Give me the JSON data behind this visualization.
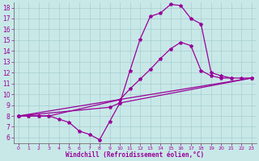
{
  "background_color": "#c8e8e8",
  "line_color": "#990099",
  "marker": "*",
  "markersize": 3,
  "linewidth": 0.9,
  "xlabel": "Windchill (Refroidissement éolien,°C)",
  "ylabel_ticks": [
    6,
    7,
    8,
    9,
    10,
    11,
    12,
    13,
    14,
    15,
    16,
    17,
    18
  ],
  "xlabel_ticks": [
    0,
    1,
    2,
    3,
    4,
    5,
    6,
    7,
    8,
    9,
    10,
    11,
    12,
    13,
    14,
    15,
    16,
    17,
    18,
    19,
    20,
    21,
    22,
    23
  ],
  "xlim": [
    -0.5,
    23.5
  ],
  "ylim": [
    5.5,
    18.5
  ],
  "series1_x": [
    0,
    1,
    2,
    3,
    4,
    5,
    6,
    7,
    8,
    9,
    10,
    11,
    12,
    13,
    14,
    15,
    16,
    17,
    18,
    19,
    20,
    21
  ],
  "series1_y": [
    8.0,
    8.0,
    8.0,
    8.0,
    7.7,
    7.4,
    6.6,
    6.3,
    5.8,
    7.5,
    9.2,
    12.2,
    15.1,
    17.2,
    17.5,
    18.3,
    18.2,
    17.0,
    16.5,
    12.0,
    11.7,
    11.5
  ],
  "series2_x": [
    0,
    1,
    2,
    3,
    10,
    11,
    12,
    13,
    14,
    15,
    16,
    17,
    18,
    19,
    20,
    21,
    22,
    23
  ],
  "series2_y": [
    8.0,
    8.0,
    8.0,
    8.0,
    9.5,
    10.5,
    11.4,
    12.3,
    13.3,
    14.2,
    14.8,
    14.5,
    12.2,
    11.7,
    11.5,
    11.5,
    11.5,
    11.5
  ],
  "series3_x": [
    0,
    23
  ],
  "series3_y": [
    8.0,
    11.5
  ],
  "series4_x": [
    0,
    9,
    10,
    23
  ],
  "series4_y": [
    8.0,
    8.8,
    9.2,
    11.5
  ]
}
